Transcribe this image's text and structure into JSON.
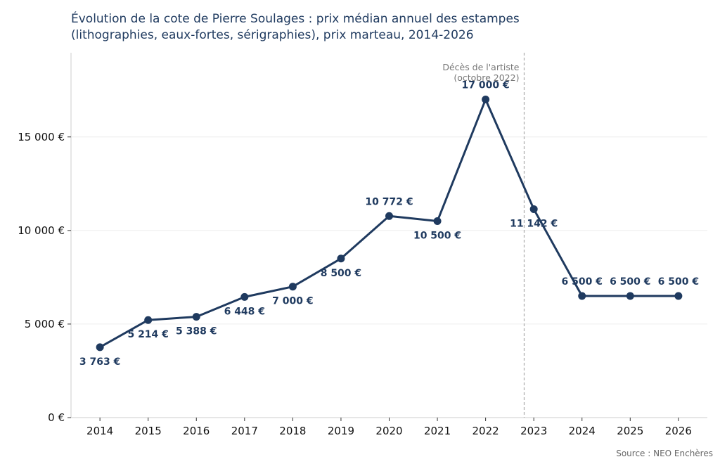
{
  "chart_data": {
    "type": "line",
    "title_lines": [
      "Évolution de la cote de Pierre Soulages : prix médian annuel des estampes",
      "(lithographies, eaux-fortes, sérigraphies), prix marteau, 2014-2026"
    ],
    "xlabel": "",
    "ylabel": "",
    "x": [
      2014,
      2015,
      2016,
      2017,
      2018,
      2019,
      2020,
      2021,
      2022,
      2023,
      2024,
      2025,
      2026
    ],
    "values": [
      3763,
      5214,
      5388,
      6448,
      7000,
      8500,
      10772,
      10500,
      17000,
      11142,
      6500,
      6500,
      6500
    ],
    "data_labels": [
      "3 763 €",
      "5 214 €",
      "5 388 €",
      "6 448 €",
      "7 000 €",
      "8 500 €",
      "10 772 €",
      "10 500 €",
      "17 000 €",
      "11 142 €",
      "6 500 €",
      "6 500 €",
      "6 500 €"
    ],
    "label_positions": [
      "below",
      "below",
      "below",
      "below",
      "below",
      "below",
      "above",
      "below",
      "above",
      "below",
      "above",
      "above",
      "above"
    ],
    "ylim": [
      0,
      19500
    ],
    "xlim": [
      2013.4,
      2026.6
    ],
    "y_ticks": [
      0,
      5000,
      10000,
      15000
    ],
    "y_tick_labels": [
      "0 €",
      "5 000 €",
      "10 000 €",
      "15 000 €"
    ],
    "grid": true,
    "annotation": {
      "x": 2022.8,
      "lines": [
        "Décès de l'artiste",
        "(octobre 2022)"
      ]
    },
    "colors": {
      "line": "#1f3a5f",
      "grid": "#eeeeee",
      "axis": "#cccccc",
      "annotation_line": "#aaaaaa"
    },
    "source": "Source : NEO Enchères"
  }
}
